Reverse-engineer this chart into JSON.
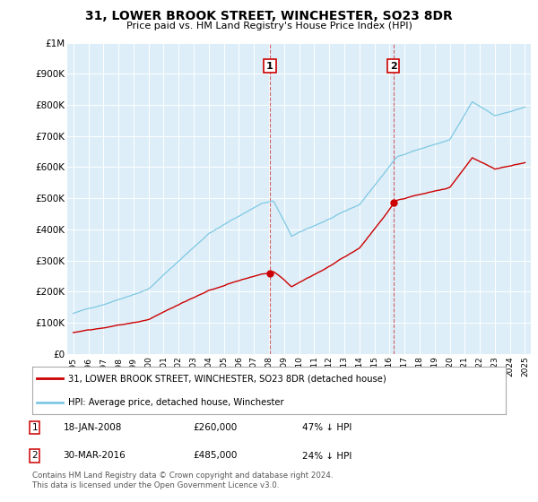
{
  "title": "31, LOWER BROOK STREET, WINCHESTER, SO23 8DR",
  "subtitle": "Price paid vs. HM Land Registry's House Price Index (HPI)",
  "ylim": [
    0,
    1000000
  ],
  "yticks": [
    0,
    100000,
    200000,
    300000,
    400000,
    500000,
    600000,
    700000,
    800000,
    900000,
    1000000
  ],
  "ytick_labels": [
    "£0",
    "£100K",
    "£200K",
    "£300K",
    "£400K",
    "£500K",
    "£600K",
    "£700K",
    "£800K",
    "£900K",
    "£1M"
  ],
  "hpi_color": "#7ec8e3",
  "price_color": "#cc0000",
  "sale1_x": 2008.05,
  "sale1_price": 260000,
  "sale2_x": 2016.25,
  "sale2_price": 485000,
  "sale1_date_str": "18-JAN-2008",
  "sale2_date_str": "30-MAR-2016",
  "sale1_hpi_pct": "47% ↓ HPI",
  "sale2_hpi_pct": "24% ↓ HPI",
  "legend_label1": "31, LOWER BROOK STREET, WINCHESTER, SO23 8DR (detached house)",
  "legend_label2": "HPI: Average price, detached house, Winchester",
  "footnote": "Contains HM Land Registry data © Crown copyright and database right 2024.\nThis data is licensed under the Open Government Licence v3.0.",
  "background_color": "#ffffff",
  "plot_bg_color": "#ddeef8"
}
